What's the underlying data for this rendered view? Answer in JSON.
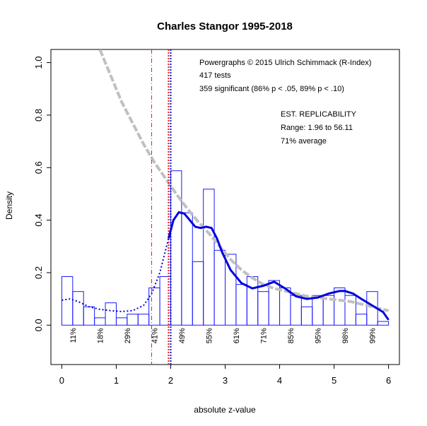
{
  "chart_data": {
    "type": "histogram",
    "title": "Charles Stangor 1995-2018",
    "xlabel": "absolute z-value",
    "ylabel": "Density",
    "xlim": [
      -0.2,
      6.2
    ],
    "ylim": [
      -0.15,
      1.05
    ],
    "x_ticks": [
      "0",
      "1",
      "2",
      "3",
      "4",
      "5",
      "6"
    ],
    "y_ticks": [
      "0.0",
      "0.2",
      "0.4",
      "0.6",
      "0.8",
      "1.0"
    ],
    "annotations": {
      "line1": "Powergraphs © 2015 Ulrich Schimmack (R-Index)",
      "line2": "417 tests",
      "line3": "359 significant (86% p < .05, 89% p < .10)",
      "line4": "EST. REPLICABILITY",
      "line5": "Range: 1.96 to 56.11",
      "line6": "71% average"
    },
    "bin_width": 0.2,
    "bins": [
      {
        "x0": 0.0,
        "density": 0.185
      },
      {
        "x0": 0.2,
        "density": 0.128
      },
      {
        "x0": 0.4,
        "density": 0.07
      },
      {
        "x0": 0.6,
        "density": 0.028
      },
      {
        "x0": 0.8,
        "density": 0.085
      },
      {
        "x0": 1.0,
        "density": 0.028
      },
      {
        "x0": 1.2,
        "density": 0.042
      },
      {
        "x0": 1.4,
        "density": 0.042
      },
      {
        "x0": 1.6,
        "density": 0.142
      },
      {
        "x0": 1.8,
        "density": 0.185
      },
      {
        "x0": 2.0,
        "density": 0.588
      },
      {
        "x0": 2.2,
        "density": 0.428
      },
      {
        "x0": 2.4,
        "density": 0.242
      },
      {
        "x0": 2.6,
        "density": 0.518
      },
      {
        "x0": 2.8,
        "density": 0.285
      },
      {
        "x0": 3.0,
        "density": 0.27
      },
      {
        "x0": 3.2,
        "density": 0.155
      },
      {
        "x0": 3.4,
        "density": 0.185
      },
      {
        "x0": 3.6,
        "density": 0.128
      },
      {
        "x0": 3.8,
        "density": 0.17
      },
      {
        "x0": 4.0,
        "density": 0.142
      },
      {
        "x0": 4.2,
        "density": 0.113
      },
      {
        "x0": 4.4,
        "density": 0.07
      },
      {
        "x0": 4.6,
        "density": 0.113
      },
      {
        "x0": 4.8,
        "density": 0.113
      },
      {
        "x0": 5.0,
        "density": 0.142
      },
      {
        "x0": 5.2,
        "density": 0.113
      },
      {
        "x0": 5.4,
        "density": 0.042
      },
      {
        "x0": 5.6,
        "density": 0.128
      },
      {
        "x0": 5.8,
        "density": 0.014
      }
    ],
    "fitted_density_nonsig": {
      "x": [
        0.0,
        0.15,
        0.3,
        0.5,
        0.7,
        0.9,
        1.1,
        1.3,
        1.5,
        1.65,
        1.8,
        1.96
      ],
      "y": [
        0.095,
        0.1,
        0.09,
        0.07,
        0.06,
        0.055,
        0.052,
        0.055,
        0.075,
        0.12,
        0.2,
        0.33
      ]
    },
    "fitted_density_sig": {
      "x": [
        1.96,
        2.05,
        2.15,
        2.25,
        2.35,
        2.45,
        2.55,
        2.65,
        2.75,
        2.85,
        2.95,
        3.1,
        3.3,
        3.5,
        3.7,
        3.9,
        4.1,
        4.3,
        4.5,
        4.7,
        4.9,
        5.1,
        5.2,
        5.35,
        5.5,
        5.7,
        5.9,
        6.0
      ],
      "y": [
        0.33,
        0.4,
        0.43,
        0.425,
        0.4,
        0.375,
        0.37,
        0.375,
        0.37,
        0.33,
        0.275,
        0.21,
        0.16,
        0.14,
        0.15,
        0.165,
        0.14,
        0.11,
        0.1,
        0.105,
        0.12,
        0.13,
        0.13,
        0.12,
        0.1,
        0.075,
        0.05,
        0.02
      ]
    },
    "expected_density_gray": {
      "x": [
        0.7,
        0.9,
        1.1,
        1.3,
        1.5,
        1.7,
        1.9,
        2.1,
        2.3,
        2.5,
        2.7,
        2.9,
        3.1,
        3.3,
        3.5,
        3.7,
        3.9,
        4.1,
        4.3,
        4.5,
        4.7,
        4.9,
        5.1,
        5.3,
        5.5,
        5.7,
        6.0
      ],
      "y": [
        1.05,
        0.95,
        0.85,
        0.77,
        0.69,
        0.62,
        0.56,
        0.5,
        0.445,
        0.395,
        0.35,
        0.3,
        0.25,
        0.21,
        0.18,
        0.155,
        0.14,
        0.13,
        0.12,
        0.11,
        0.105,
        0.1,
        0.095,
        0.09,
        0.08,
        0.07,
        0.055
      ]
    },
    "vertical_lines": [
      {
        "x": 1.65,
        "color": "#e0202a",
        "style": "dashdot"
      },
      {
        "x": 1.96,
        "color": "#e0202a",
        "style": "dotted"
      },
      {
        "x": 2.0,
        "color": "#1010d0",
        "style": "dotted"
      }
    ],
    "power_labels": [
      {
        "x": 0.2,
        "text": "11%"
      },
      {
        "x": 0.7,
        "text": "18%"
      },
      {
        "x": 1.2,
        "text": "29%"
      },
      {
        "x": 1.7,
        "text": "41%"
      },
      {
        "x": 2.2,
        "text": "49%"
      },
      {
        "x": 2.7,
        "text": "55%"
      },
      {
        "x": 3.2,
        "text": "61%"
      },
      {
        "x": 3.7,
        "text": "71%"
      },
      {
        "x": 4.2,
        "text": "85%"
      },
      {
        "x": 4.7,
        "text": "95%"
      },
      {
        "x": 5.2,
        "text": "98%"
      },
      {
        "x": 5.7,
        "text": "99%"
      }
    ],
    "colors": {
      "bar": "#1a1aff",
      "density": "#0000dd",
      "expected": "#c0c0c0",
      "crit_red": "#e0202a",
      "crit_blue": "#1010d0"
    }
  }
}
